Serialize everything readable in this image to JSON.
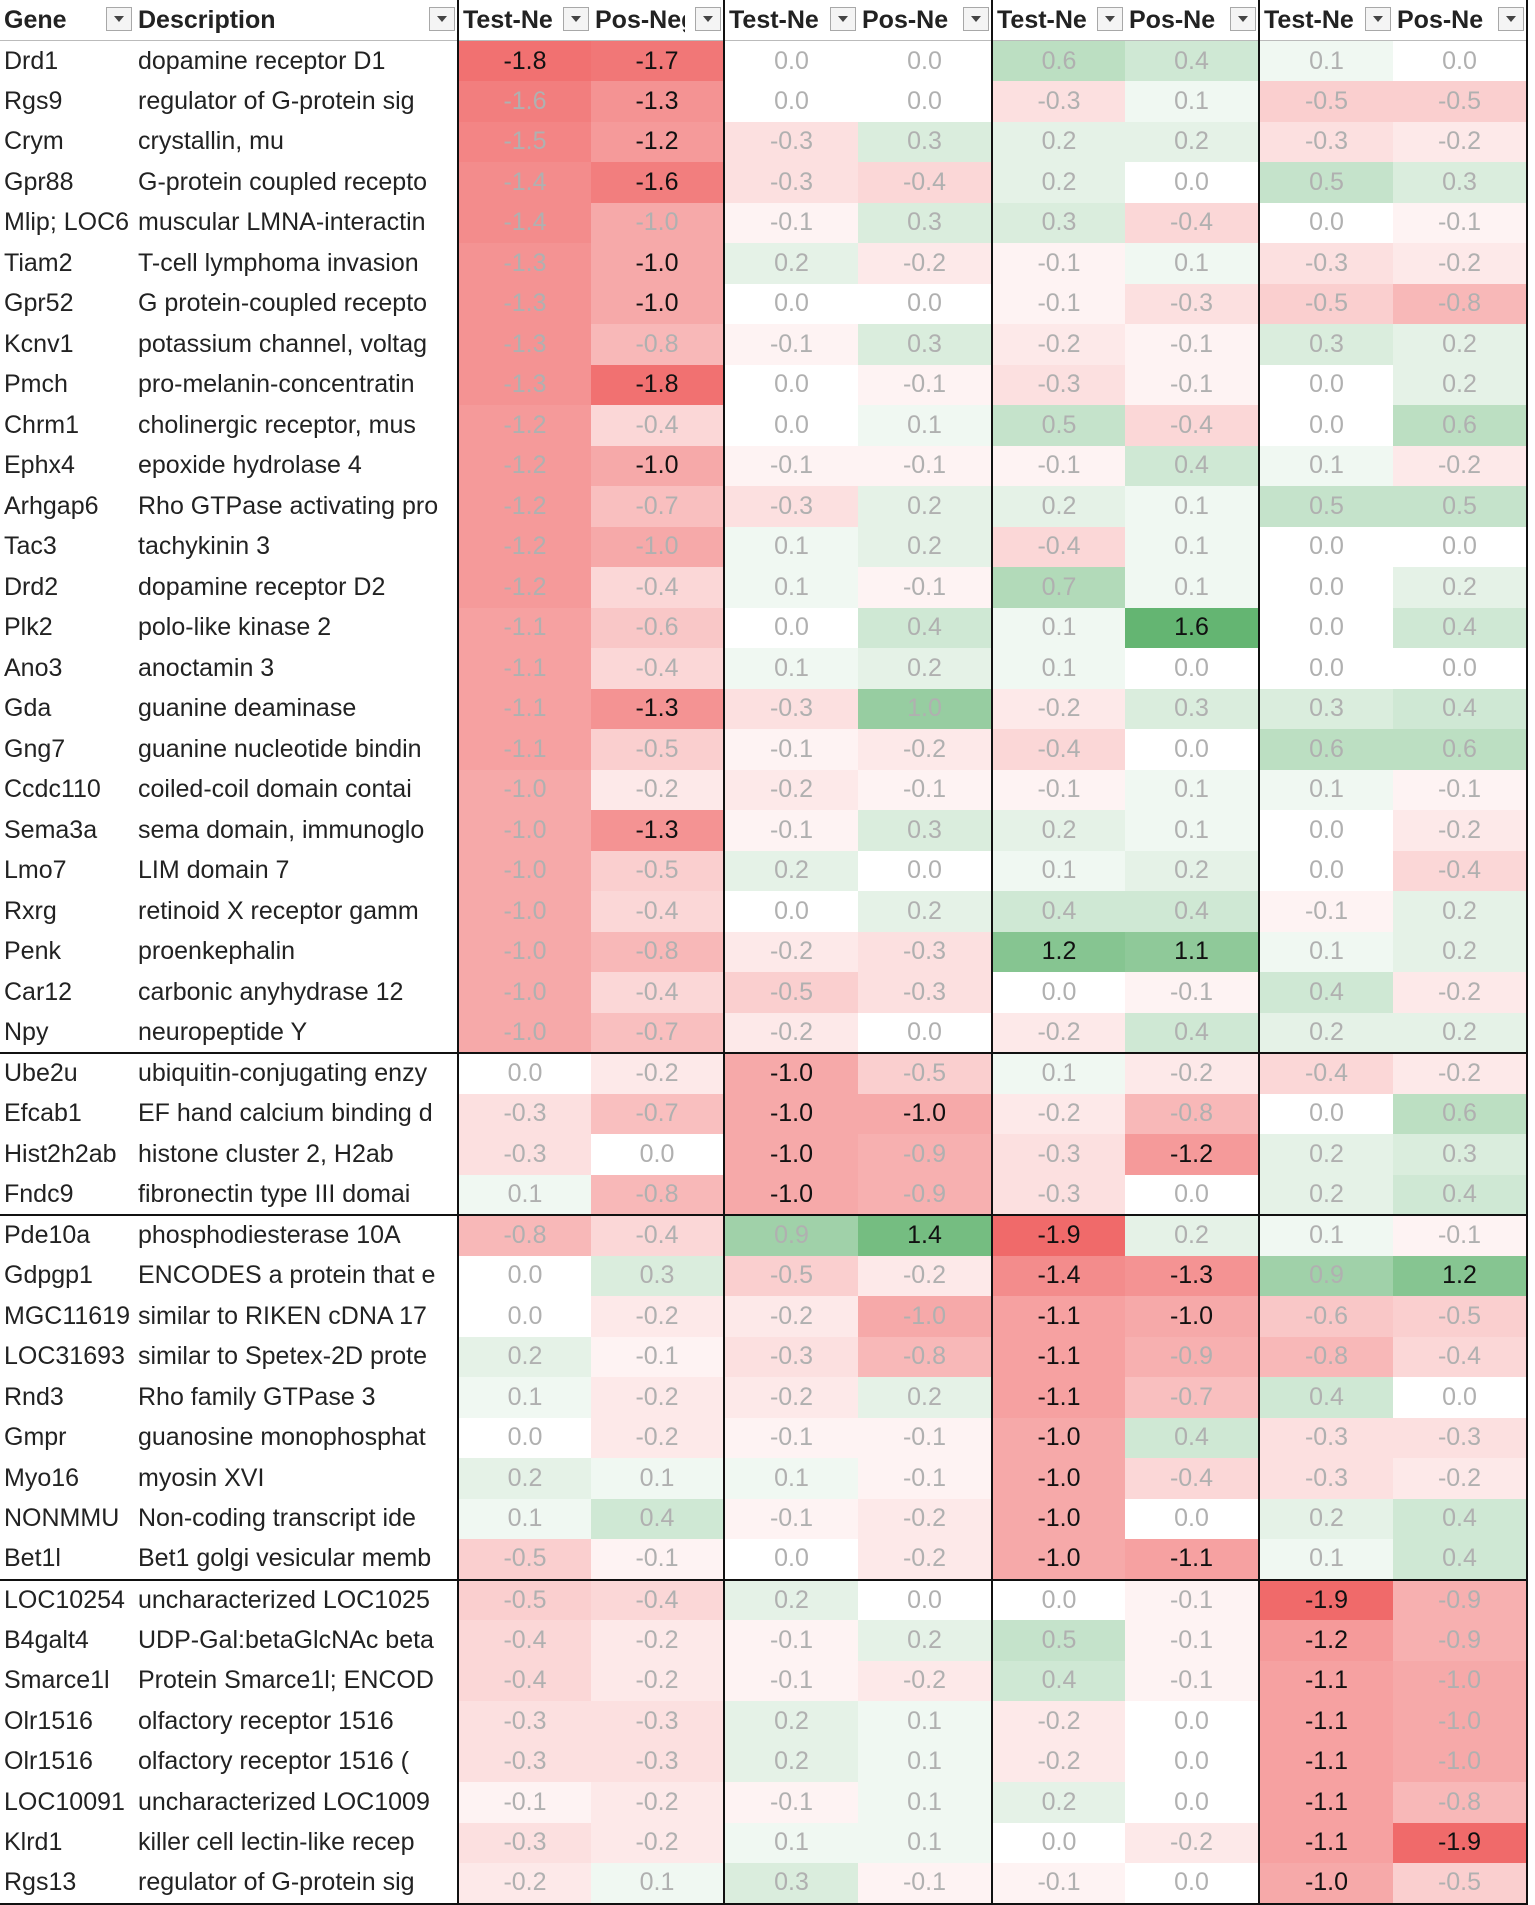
{
  "headers": [
    {
      "label": "Gene"
    },
    {
      "label": "Description"
    },
    {
      "label": "Test-Neg f"
    },
    {
      "label": "Pos-Neg f"
    },
    {
      "label": "Test-Ne"
    },
    {
      "label": "Pos-Ne"
    },
    {
      "label": "Test-Ne"
    },
    {
      "label": "Pos-Ne"
    },
    {
      "label": "Test-Ne"
    },
    {
      "label": "Pos-Ne"
    }
  ],
  "colors": {
    "red": "#f06a6a",
    "green": "#4ca95c",
    "bold_text": "#111111",
    "faint_text": "#b0b0b0"
  },
  "groups": [
    {
      "rows": [
        {
          "gene": "Drd1",
          "desc": "dopamine receptor D1",
          "vals": [
            "-1.8",
            "-1.7",
            "0.0",
            "0.0",
            "0.6",
            "0.4",
            "0.1",
            "0.0"
          ]
        },
        {
          "gene": "Rgs9",
          "desc": "regulator of G-protein sig",
          "vals": [
            "-1.6",
            "-1.3",
            "0.0",
            "0.0",
            "-0.3",
            "0.1",
            "-0.5",
            "-0.5"
          ]
        },
        {
          "gene": "Crym",
          "desc": "crystallin, mu",
          "vals": [
            "-1.5",
            "-1.2",
            "-0.3",
            "0.3",
            "0.2",
            "0.2",
            "-0.3",
            "-0.2"
          ]
        },
        {
          "gene": "Gpr88",
          "desc": "G-protein coupled recepto",
          "vals": [
            "-1.4",
            "-1.6",
            "-0.3",
            "-0.4",
            "0.2",
            "0.0",
            "0.5",
            "0.3"
          ]
        },
        {
          "gene": "Mlip; LOC6",
          "desc": "muscular LMNA-interactin",
          "vals": [
            "-1.4",
            "-1.0",
            "-0.1",
            "0.3",
            "0.3",
            "-0.4",
            "0.0",
            "-0.1"
          ]
        },
        {
          "gene": "Tiam2",
          "desc": "T-cell lymphoma invasion",
          "vals": [
            "-1.3",
            "-1.0",
            "0.2",
            "-0.2",
            "-0.1",
            "0.1",
            "-0.3",
            "-0.2"
          ]
        },
        {
          "gene": "Gpr52",
          "desc": "G protein-coupled recepto",
          "vals": [
            "-1.3",
            "-1.0",
            "0.0",
            "0.0",
            "-0.1",
            "-0.3",
            "-0.5",
            "-0.8"
          ]
        },
        {
          "gene": "Kcnv1",
          "desc": "potassium channel, voltag",
          "vals": [
            "-1.3",
            "-0.8",
            "-0.1",
            "0.3",
            "-0.2",
            "-0.1",
            "0.3",
            "0.2"
          ]
        },
        {
          "gene": "Pmch",
          "desc": "pro-melanin-concentratin",
          "vals": [
            "-1.3",
            "-1.8",
            "0.0",
            "-0.1",
            "-0.3",
            "-0.1",
            "0.0",
            "0.2"
          ]
        },
        {
          "gene": "Chrm1",
          "desc": "cholinergic receptor, mus",
          "vals": [
            "-1.2",
            "-0.4",
            "0.0",
            "0.1",
            "0.5",
            "-0.4",
            "0.0",
            "0.6"
          ]
        },
        {
          "gene": "Ephx4",
          "desc": "epoxide hydrolase 4",
          "vals": [
            "-1.2",
            "-1.0",
            "-0.1",
            "-0.1",
            "-0.1",
            "0.4",
            "0.1",
            "-0.2"
          ]
        },
        {
          "gene": "Arhgap6",
          "desc": "Rho GTPase activating pro",
          "vals": [
            "-1.2",
            "-0.7",
            "-0.3",
            "0.2",
            "0.2",
            "0.1",
            "0.5",
            "0.5"
          ]
        },
        {
          "gene": "Tac3",
          "desc": "tachykinin 3",
          "vals": [
            "-1.2",
            "-1.0",
            "0.1",
            "0.2",
            "-0.4",
            "0.1",
            "0.0",
            "0.0"
          ]
        },
        {
          "gene": "Drd2",
          "desc": "dopamine receptor D2",
          "vals": [
            "-1.2",
            "-0.4",
            "0.1",
            "-0.1",
            "0.7",
            "0.1",
            "0.0",
            "0.2"
          ]
        },
        {
          "gene": "Plk2",
          "desc": "polo-like kinase 2",
          "vals": [
            "-1.1",
            "-0.6",
            "0.0",
            "0.4",
            "0.1",
            "1.6",
            "0.0",
            "0.4"
          ]
        },
        {
          "gene": "Ano3",
          "desc": "anoctamin 3",
          "vals": [
            "-1.1",
            "-0.4",
            "0.1",
            "0.2",
            "0.1",
            "0.0",
            "0.0",
            "0.0"
          ]
        },
        {
          "gene": "Gda",
          "desc": "guanine deaminase",
          "vals": [
            "-1.1",
            "-1.3",
            "-0.3",
            "1.0",
            "-0.2",
            "0.3",
            "0.3",
            "0.4"
          ]
        },
        {
          "gene": "Gng7",
          "desc": "guanine nucleotide bindin",
          "vals": [
            "-1.1",
            "-0.5",
            "-0.1",
            "-0.2",
            "-0.4",
            "0.0",
            "0.6",
            "0.6"
          ]
        },
        {
          "gene": "Ccdc110",
          "desc": "coiled-coil domain contai",
          "vals": [
            "-1.0",
            "-0.2",
            "-0.2",
            "-0.1",
            "-0.1",
            "0.1",
            "0.1",
            "-0.1"
          ]
        },
        {
          "gene": "Sema3a",
          "desc": "sema domain, immunoglo",
          "vals": [
            "-1.0",
            "-1.3",
            "-0.1",
            "0.3",
            "0.2",
            "0.1",
            "0.0",
            "-0.2"
          ]
        },
        {
          "gene": "Lmo7",
          "desc": "LIM domain 7",
          "vals": [
            "-1.0",
            "-0.5",
            "0.2",
            "0.0",
            "0.1",
            "0.2",
            "0.0",
            "-0.4"
          ]
        },
        {
          "gene": "Rxrg",
          "desc": "retinoid X receptor gamm",
          "vals": [
            "-1.0",
            "-0.4",
            "0.0",
            "0.2",
            "0.4",
            "0.4",
            "-0.1",
            "0.2"
          ]
        },
        {
          "gene": "Penk",
          "desc": "proenkephalin",
          "vals": [
            "-1.0",
            "-0.8",
            "-0.2",
            "-0.3",
            "1.2",
            "1.1",
            "0.1",
            "0.2"
          ]
        },
        {
          "gene": "Car12",
          "desc": "carbonic anyhydrase 12",
          "vals": [
            "-1.0",
            "-0.4",
            "-0.5",
            "-0.3",
            "0.0",
            "-0.1",
            "0.4",
            "-0.2"
          ]
        },
        {
          "gene": "Npy",
          "desc": "neuropeptide Y",
          "vals": [
            "-1.0",
            "-0.7",
            "-0.2",
            "0.0",
            "-0.2",
            "0.4",
            "0.2",
            "0.2"
          ]
        }
      ]
    },
    {
      "rows": [
        {
          "gene": "Ube2u",
          "desc": "ubiquitin-conjugating enzy",
          "vals": [
            "0.0",
            "-0.2",
            "-1.0",
            "-0.5",
            "0.1",
            "-0.2",
            "-0.4",
            "-0.2"
          ]
        },
        {
          "gene": "Efcab1",
          "desc": "EF hand calcium binding d",
          "vals": [
            "-0.3",
            "-0.7",
            "-1.0",
            "-1.0",
            "-0.2",
            "-0.8",
            "0.0",
            "0.6"
          ]
        },
        {
          "gene": "Hist2h2ab",
          "desc": "histone cluster 2, H2ab",
          "vals": [
            "-0.3",
            "0.0",
            "-1.0",
            "-0.9",
            "-0.3",
            "-1.2",
            "0.2",
            "0.3"
          ]
        },
        {
          "gene": "Fndc9",
          "desc": "fibronectin type III domai",
          "vals": [
            "0.1",
            "-0.8",
            "-1.0",
            "-0.9",
            "-0.3",
            "0.0",
            "0.2",
            "0.4"
          ]
        }
      ]
    },
    {
      "rows": [
        {
          "gene": "Pde10a",
          "desc": "phosphodiesterase 10A",
          "vals": [
            "-0.8",
            "-0.4",
            "0.9",
            "1.4",
            "-1.9",
            "0.2",
            "0.1",
            "-0.1"
          ]
        },
        {
          "gene": "Gdpgp1",
          "desc": "ENCODES a protein that e",
          "vals": [
            "0.0",
            "0.3",
            "-0.5",
            "-0.2",
            "-1.4",
            "-1.3",
            "0.9",
            "1.2"
          ]
        },
        {
          "gene": "MGC11619",
          "desc": "similar to RIKEN cDNA 17",
          "vals": [
            "0.0",
            "-0.2",
            "-0.2",
            "-1.0",
            "-1.1",
            "-1.0",
            "-0.6",
            "-0.5"
          ]
        },
        {
          "gene": "LOC31693",
          "desc": "similar to Spetex-2D prote",
          "vals": [
            "0.2",
            "-0.1",
            "-0.3",
            "-0.8",
            "-1.1",
            "-0.9",
            "-0.8",
            "-0.4"
          ]
        },
        {
          "gene": "Rnd3",
          "desc": "Rho family GTPase 3",
          "vals": [
            "0.1",
            "-0.2",
            "-0.2",
            "0.2",
            "-1.1",
            "-0.7",
            "0.4",
            "0.0"
          ]
        },
        {
          "gene": "Gmpr",
          "desc": "guanosine monophosphat",
          "vals": [
            "0.0",
            "-0.2",
            "-0.1",
            "-0.1",
            "-1.0",
            "0.4",
            "-0.3",
            "-0.3"
          ]
        },
        {
          "gene": "Myo16",
          "desc": "myosin XVI",
          "vals": [
            "0.2",
            "0.1",
            "0.1",
            "-0.1",
            "-1.0",
            "-0.4",
            "-0.3",
            "-0.2"
          ]
        },
        {
          "gene": "NONMMU",
          "desc": "Non-coding transcript ide",
          "vals": [
            "0.1",
            "0.4",
            "-0.1",
            "-0.2",
            "-1.0",
            "0.0",
            "0.2",
            "0.4"
          ]
        },
        {
          "gene": "Bet1l",
          "desc": "Bet1 golgi vesicular memb",
          "vals": [
            "-0.5",
            "-0.1",
            "0.0",
            "-0.2",
            "-1.0",
            "-1.1",
            "0.1",
            "0.4"
          ]
        }
      ]
    },
    {
      "rows": [
        {
          "gene": "LOC10254",
          "desc": "uncharacterized LOC1025",
          "vals": [
            "-0.5",
            "-0.4",
            "0.2",
            "0.0",
            "0.0",
            "-0.1",
            "-1.9",
            "-0.9"
          ]
        },
        {
          "gene": "B4galt4",
          "desc": "UDP-Gal:betaGlcNAc beta",
          "vals": [
            "-0.4",
            "-0.2",
            "-0.1",
            "0.2",
            "0.5",
            "-0.1",
            "-1.2",
            "-0.9"
          ]
        },
        {
          "gene": "Smarce1l",
          "desc": "Protein Smarce1l; ENCOD",
          "vals": [
            "-0.4",
            "-0.2",
            "-0.1",
            "-0.2",
            "0.4",
            "-0.1",
            "-1.1",
            "-1.0"
          ]
        },
        {
          "gene": "Olr1516",
          "desc": "olfactory receptor 1516",
          "vals": [
            "-0.3",
            "-0.3",
            "0.2",
            "0.1",
            "-0.2",
            "0.0",
            "-1.1",
            "-1.0"
          ]
        },
        {
          "gene": "Olr1516",
          "desc": "olfactory receptor 1516 (",
          "vals": [
            "-0.3",
            "-0.3",
            "0.2",
            "0.1",
            "-0.2",
            "0.0",
            "-1.1",
            "-1.0"
          ]
        },
        {
          "gene": "LOC10091",
          "desc": "uncharacterized LOC1009",
          "vals": [
            "-0.1",
            "-0.2",
            "-0.1",
            "0.1",
            "0.2",
            "0.0",
            "-1.1",
            "-0.8"
          ]
        },
        {
          "gene": "Klrd1",
          "desc": "killer cell lectin-like recep",
          "vals": [
            "-0.3",
            "-0.2",
            "0.1",
            "0.1",
            "0.0",
            "-0.2",
            "-1.1",
            "-1.9"
          ]
        },
        {
          "gene": "Rgs13",
          "desc": "regulator of G-protein sig",
          "vals": [
            "-0.2",
            "0.1",
            "0.3",
            "-0.1",
            "-0.1",
            "0.0",
            "-1.0",
            "-0.5"
          ]
        }
      ]
    }
  ],
  "highlighted": [
    [
      [
        0,
        0
      ],
      [
        0,
        1
      ],
      [
        1,
        1
      ],
      [
        2,
        1
      ],
      [
        3,
        1
      ],
      [
        5,
        1
      ],
      [
        6,
        1
      ],
      [
        8,
        1
      ],
      [
        10,
        1
      ],
      [
        16,
        1
      ],
      [
        19,
        1
      ]
    ],
    [
      [
        0,
        2
      ],
      [
        1,
        2
      ],
      [
        2,
        2
      ],
      [
        3,
        2
      ],
      [
        1,
        3
      ]
    ],
    [
      [
        0,
        4
      ],
      [
        1,
        4
      ],
      [
        2,
        4
      ],
      [
        3,
        4
      ],
      [
        4,
        4
      ],
      [
        5,
        4
      ],
      [
        6,
        4
      ],
      [
        7,
        4
      ],
      [
        8,
        4
      ],
      [
        0,
        3
      ],
      [
        1,
        5
      ],
      [
        2,
        5
      ],
      [
        8,
        5
      ],
      [
        1,
        7
      ]
    ],
    [
      [
        0,
        6
      ],
      [
        1,
        6
      ],
      [
        2,
        6
      ],
      [
        3,
        6
      ],
      [
        4,
        6
      ],
      [
        5,
        6
      ],
      [
        6,
        6
      ],
      [
        7,
        6
      ],
      [
        6,
        7
      ]
    ]
  ],
  "extra_bold": [
    [
      [
        14,
        5
      ],
      [
        22,
        4
      ],
      [
        22,
        5
      ]
    ],
    [
      [
        2,
        5
      ]
    ]
  ]
}
